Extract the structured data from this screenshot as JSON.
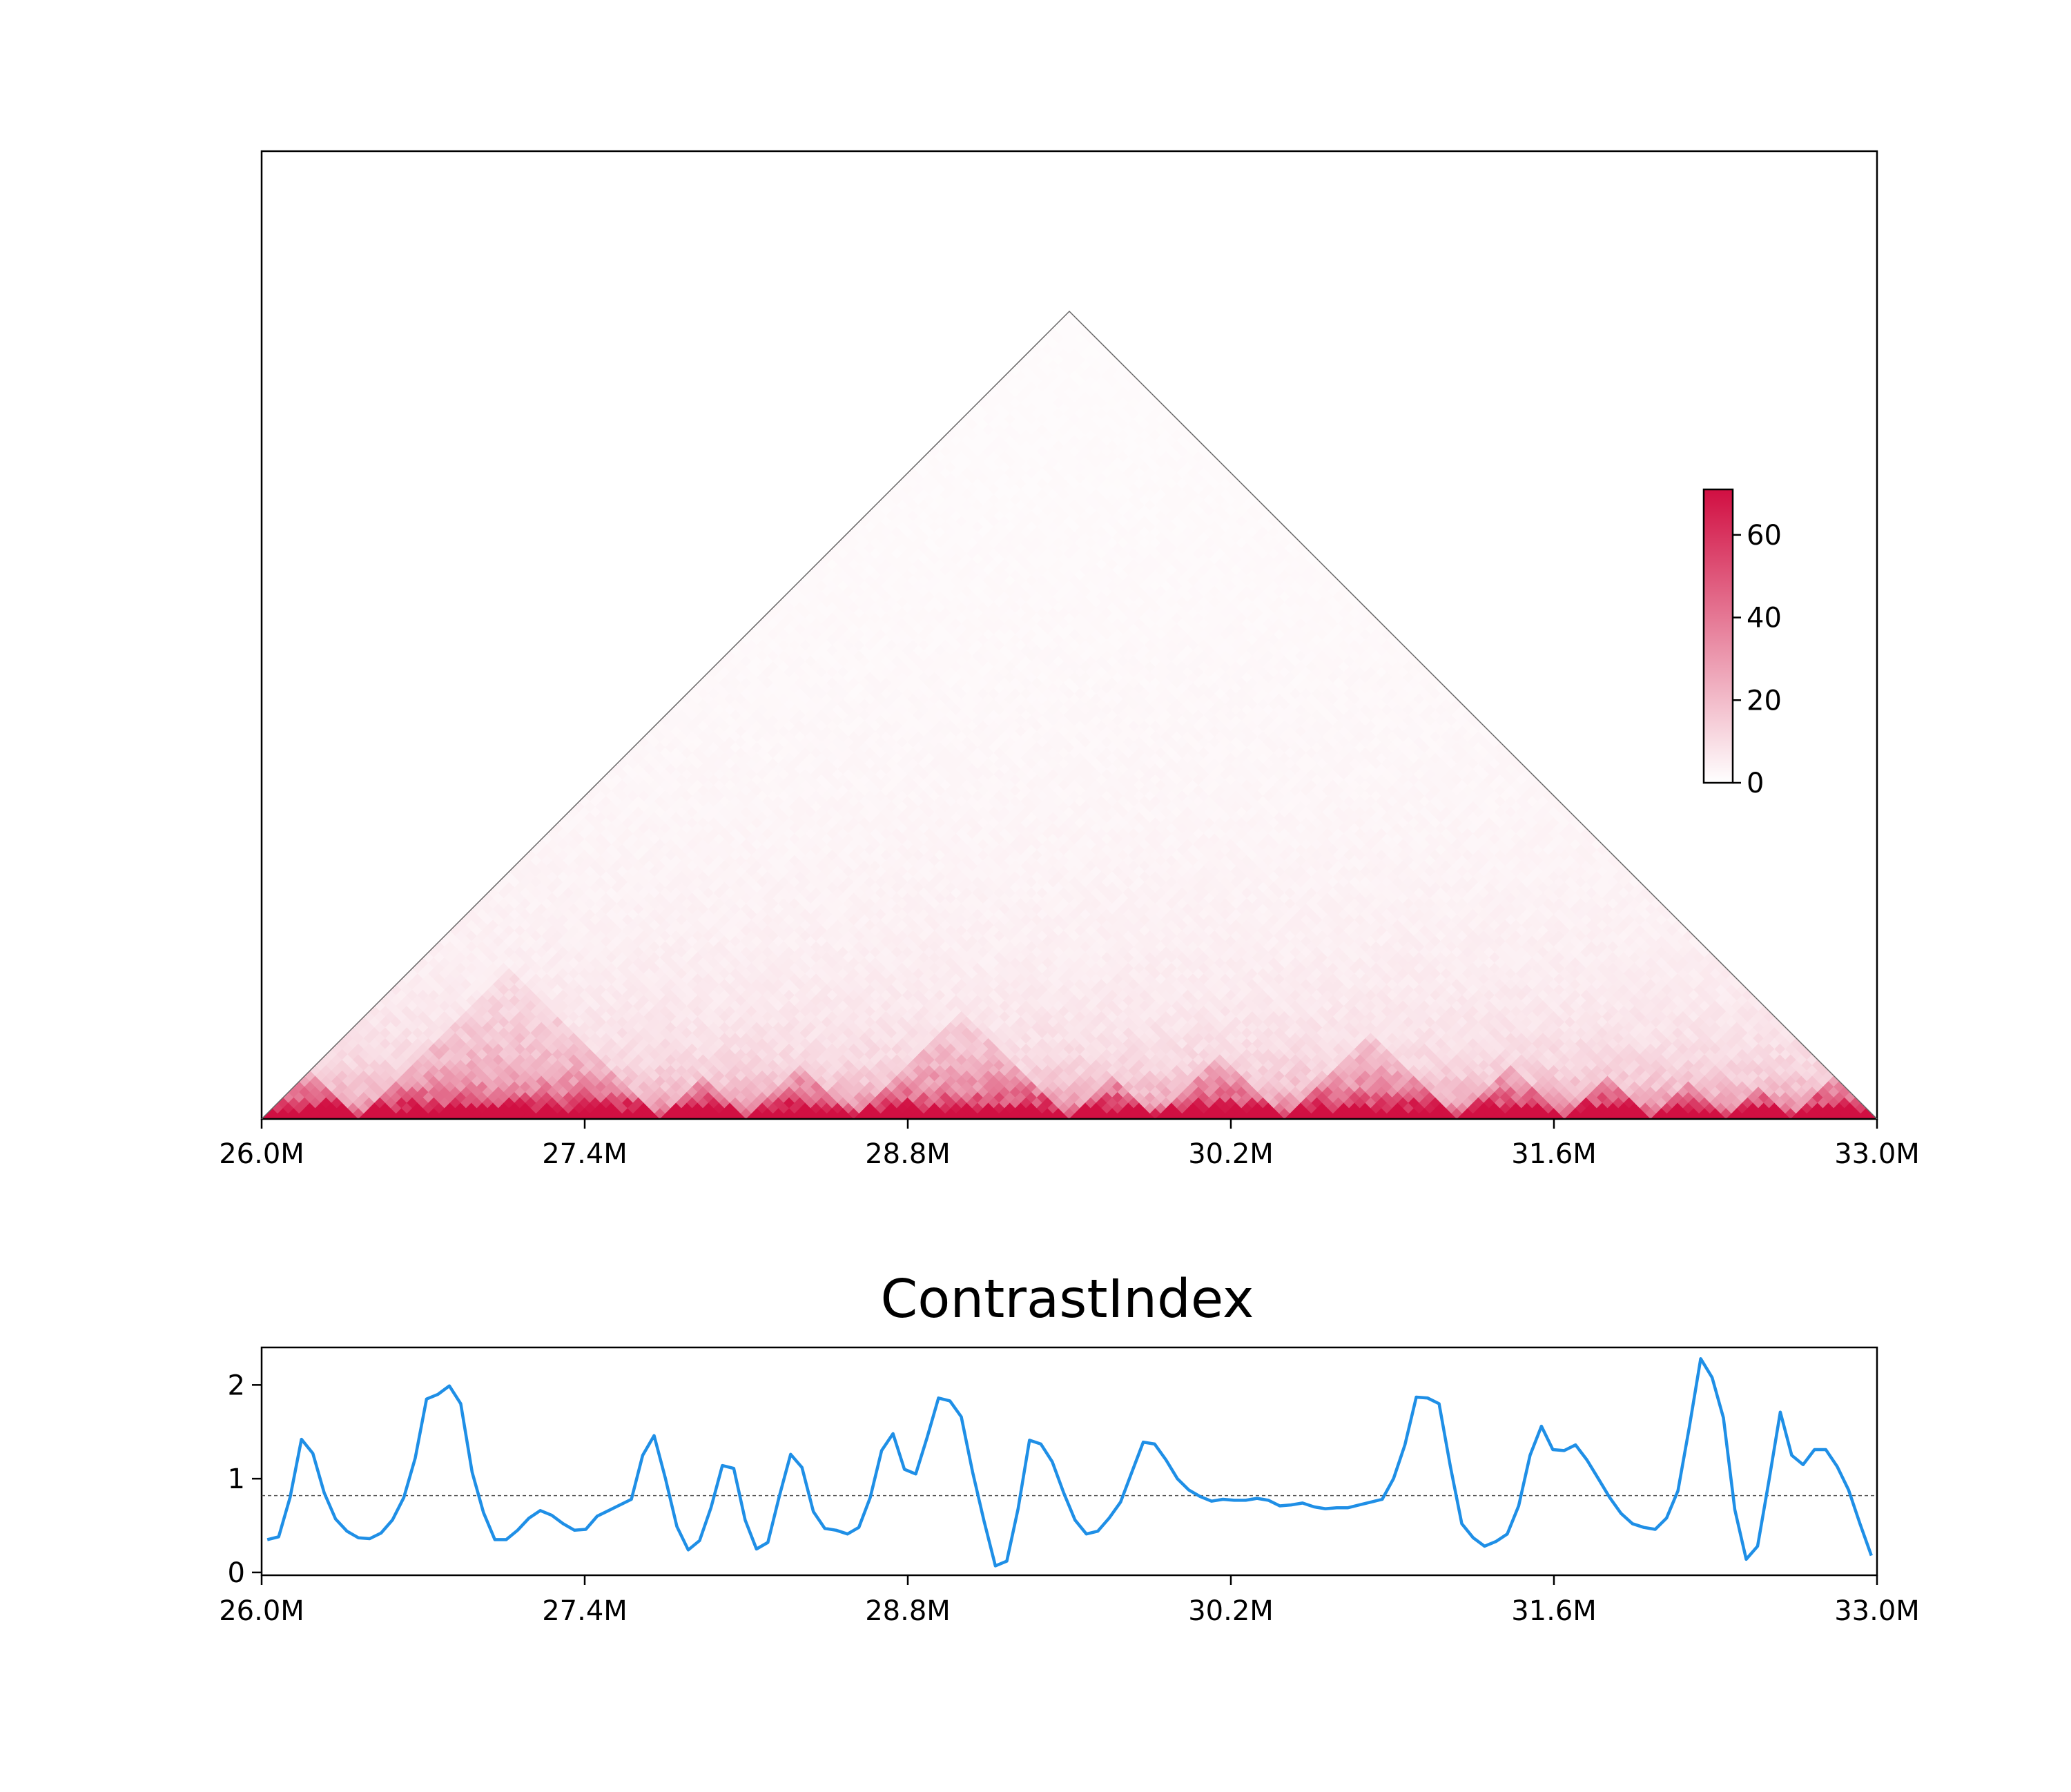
{
  "colors": {
    "heatmap_low": "#ffffff",
    "heatmap_high": "#d10f42",
    "ci_line": "#1f8fe6",
    "ci_threshold": "#555555",
    "axis": "#000000"
  },
  "chart_data": [
    {
      "type": "heatmap",
      "subtype": "triangular Hi-C contact map",
      "title": "",
      "x_range_mb": [
        26.0,
        33.0
      ],
      "xtick_labels": [
        "26.0M",
        "27.4M",
        "28.8M",
        "30.2M",
        "31.6M",
        "33.0M"
      ],
      "xtick_values_mb": [
        26.0,
        27.4,
        28.8,
        30.2,
        31.6,
        33.0
      ],
      "color_range": [
        0,
        71
      ],
      "colorbar_ticks": [
        "0",
        "20",
        "40",
        "60"
      ],
      "colorbar_tick_values": [
        0,
        20,
        40,
        60
      ],
      "domain_boundaries_mb": [
        26.4,
        27.75,
        28.12,
        28.55,
        29.52,
        29.85,
        30.45,
        31.2,
        31.65,
        32.02,
        32.35,
        32.62
      ]
    },
    {
      "type": "line",
      "title": "ContrastIndex",
      "x_range_mb": [
        26.0,
        33.0
      ],
      "xtick_labels": [
        "26.0M",
        "27.4M",
        "28.8M",
        "30.2M",
        "31.6M",
        "33.0M"
      ],
      "xtick_values_mb": [
        26.0,
        27.4,
        28.8,
        30.2,
        31.6,
        33.0
      ],
      "ylim": [
        -0.03,
        2.4
      ],
      "ytick_labels": [
        "0",
        "1",
        "2"
      ],
      "ytick_values": [
        0,
        1,
        2
      ],
      "threshold": 0.82,
      "series": [
        {
          "values": [
            0.35,
            0.38,
            0.8,
            1.42,
            1.27,
            0.85,
            0.57,
            0.44,
            0.37,
            0.36,
            0.42,
            0.56,
            0.8,
            1.22,
            1.85,
            1.9,
            1.99,
            1.8,
            1.07,
            0.64,
            0.35,
            0.35,
            0.45,
            0.58,
            0.66,
            0.61,
            0.52,
            0.45,
            0.46,
            0.6,
            0.66,
            0.72,
            0.78,
            1.25,
            1.46,
            1.0,
            0.49,
            0.24,
            0.34,
            0.69,
            1.14,
            1.11,
            0.56,
            0.25,
            0.32,
            0.81,
            1.26,
            1.12,
            0.65,
            0.47,
            0.45,
            0.41,
            0.48,
            0.8,
            1.3,
            1.48,
            1.1,
            1.05,
            1.44,
            1.86,
            1.83,
            1.66,
            1.07,
            0.55,
            0.07,
            0.12,
            0.68,
            1.41,
            1.37,
            1.18,
            0.85,
            0.56,
            0.41,
            0.44,
            0.58,
            0.75,
            1.07,
            1.39,
            1.37,
            1.2,
            1.0,
            0.88,
            0.81,
            0.76,
            0.78,
            0.77,
            0.77,
            0.79,
            0.77,
            0.71,
            0.72,
            0.74,
            0.7,
            0.68,
            0.69,
            0.69,
            0.72,
            0.75,
            0.78,
            1.0,
            1.36,
            1.87,
            1.86,
            1.8,
            1.13,
            0.52,
            0.37,
            0.28,
            0.33,
            0.41,
            0.71,
            1.25,
            1.56,
            1.31,
            1.3,
            1.36,
            1.2,
            1.0,
            0.8,
            0.63,
            0.52,
            0.48,
            0.46,
            0.58,
            0.87,
            1.55,
            2.28,
            2.08,
            1.65,
            0.67,
            0.14,
            0.28,
            0.98,
            1.71,
            1.25,
            1.15,
            1.31,
            1.31,
            1.13,
            0.88,
            0.52,
            0.18
          ]
        }
      ]
    }
  ]
}
